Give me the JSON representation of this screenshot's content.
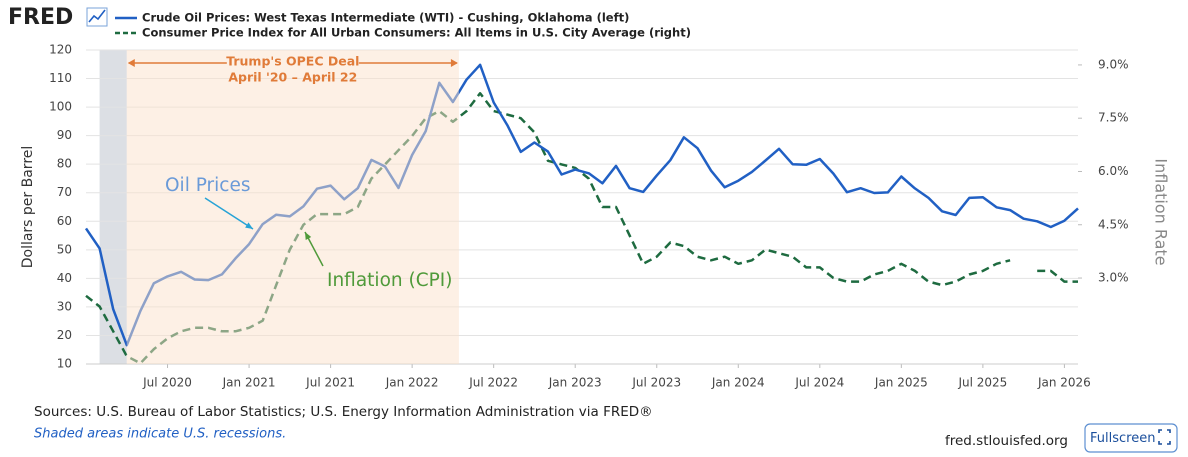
{
  "header": {
    "logo": "FRED"
  },
  "chart_data": {
    "type": "line",
    "x": [
      "2020-01",
      "2020-02",
      "2020-03",
      "2020-04",
      "2020-05",
      "2020-06",
      "2020-07",
      "2020-08",
      "2020-09",
      "2020-10",
      "2020-11",
      "2020-12",
      "2021-01",
      "2021-02",
      "2021-03",
      "2021-04",
      "2021-05",
      "2021-06",
      "2021-07",
      "2021-08",
      "2021-09",
      "2021-10",
      "2021-11",
      "2021-12",
      "2022-01",
      "2022-02",
      "2022-03",
      "2022-04",
      "2022-05",
      "2022-06",
      "2022-07",
      "2022-08",
      "2022-09",
      "2022-10",
      "2022-11",
      "2022-12",
      "2023-01",
      "2023-02",
      "2023-03",
      "2023-04",
      "2023-05",
      "2023-06",
      "2023-07",
      "2023-08",
      "2023-09",
      "2023-10",
      "2023-11",
      "2023-12",
      "2024-01",
      "2024-02",
      "2024-03",
      "2024-04",
      "2024-05",
      "2024-06",
      "2024-07",
      "2024-08",
      "2024-09",
      "2024-10",
      "2024-11",
      "2024-12",
      "2025-01",
      "2025-02",
      "2025-03",
      "2025-04",
      "2025-05",
      "2025-06",
      "2025-07",
      "2025-08",
      "2025-09",
      "2025-10",
      "2025-11",
      "2025-12",
      "2026-01",
      "2026-02"
    ],
    "series": [
      {
        "name": "Crude Oil Prices: West Texas Intermediate (WTI) - Cushing, Oklahoma (left)",
        "color": "#2160c4",
        "dashed": false,
        "values": [
          57.5,
          50.5,
          29.2,
          16.6,
          28.6,
          38.3,
          40.7,
          42.3,
          39.6,
          39.4,
          41.4,
          47.0,
          52.0,
          59.0,
          62.3,
          61.7,
          65.2,
          71.4,
          72.5,
          67.7,
          71.6,
          81.5,
          79.2,
          71.7,
          83.2,
          91.6,
          108.5,
          101.8,
          109.6,
          114.8,
          101.6,
          93.7,
          84.3,
          87.6,
          84.4,
          76.4,
          78.1,
          76.8,
          73.3,
          79.4,
          71.6,
          70.3,
          76.0,
          81.4,
          89.4,
          85.6,
          77.7,
          71.9,
          74.2,
          77.3,
          81.3,
          85.4,
          80.0,
          79.8,
          81.8,
          76.7,
          70.2,
          71.6,
          69.9,
          70.1,
          75.7,
          71.5,
          68.2,
          63.5,
          62.2,
          68.2,
          68.4,
          64.9,
          63.9,
          60.9,
          60.0,
          58.0,
          60.2,
          64.5
        ]
      },
      {
        "name": "Consumer Price Index for All Urban Consumers: All Items in U.S. City Average (right)",
        "color": "#1e6b40",
        "dashed": true,
        "axis": "y2",
        "values": [
          2.5,
          2.2,
          1.5,
          0.8,
          0.6,
          1.0,
          1.3,
          1.5,
          1.6,
          1.6,
          1.5,
          1.5,
          1.6,
          1.8,
          2.8,
          3.8,
          4.5,
          4.8,
          4.8,
          4.8,
          5.0,
          5.8,
          6.2,
          6.6,
          7.0,
          7.5,
          7.7,
          7.4,
          7.7,
          8.2,
          7.7,
          7.6,
          7.5,
          7.1,
          6.3,
          6.2,
          6.1,
          5.8,
          5.0,
          5.0,
          4.2,
          3.4,
          3.6,
          4.0,
          3.9,
          3.6,
          3.5,
          3.6,
          3.4,
          3.5,
          3.8,
          3.7,
          3.6,
          3.3,
          3.3,
          3.0,
          2.9,
          2.9,
          3.1,
          3.2,
          3.4,
          3.2,
          2.9,
          2.8,
          2.9,
          3.1,
          3.2,
          3.4,
          3.5,
          null,
          3.2,
          3.2,
          2.9,
          2.9
        ]
      }
    ],
    "xlim": [
      "2020-01",
      "2026-02"
    ],
    "xticks": [
      {
        "value": "2020-07",
        "label": "Jul 2020"
      },
      {
        "value": "2021-01",
        "label": "Jan 2021"
      },
      {
        "value": "2021-07",
        "label": "Jul 2021"
      },
      {
        "value": "2022-01",
        "label": "Jan 2022"
      },
      {
        "value": "2022-07",
        "label": "Jul 2022"
      },
      {
        "value": "2023-01",
        "label": "Jan 2023"
      },
      {
        "value": "2023-07",
        "label": "Jul 2023"
      },
      {
        "value": "2024-01",
        "label": "Jan 2024"
      },
      {
        "value": "2024-07",
        "label": "Jul 2024"
      },
      {
        "value": "2025-01",
        "label": "Jan 2025"
      },
      {
        "value": "2025-07",
        "label": "Jul 2025"
      },
      {
        "value": "2026-01",
        "label": "Jan 2026"
      }
    ],
    "ylim": [
      10,
      120
    ],
    "yticks": [
      10,
      20,
      30,
      40,
      50,
      60,
      70,
      80,
      90,
      100,
      110,
      120
    ],
    "y2lim": [
      0.58,
      9.42
    ],
    "y2ticks": [
      {
        "value": 3,
        "label": "3.0%"
      },
      {
        "value": 4.5,
        "label": "4.5%"
      },
      {
        "value": 6,
        "label": "6.0%"
      },
      {
        "value": 7.5,
        "label": "7.5%"
      },
      {
        "value": 9,
        "label": "9.0%"
      }
    ],
    "ylabel": "Dollars per Barrel",
    "y2label": "Inflation Rate",
    "grid": true,
    "recessions": [
      {
        "start": "2020-02",
        "end": "2020-04"
      }
    ],
    "highlight": {
      "start": "2020-04",
      "end": "2022-04",
      "title": "Trump's OPEC Deal",
      "subtitle": "April '20 – April 22"
    },
    "annotations": [
      {
        "text": "Oil Prices",
        "series": 0
      },
      {
        "text": "Inflation (CPI)",
        "series": 1
      }
    ]
  },
  "footer": {
    "sources": "Sources: U.S. Bureau of Labor Statistics; U.S. Energy Information Administration via FRED®",
    "note": "Shaded areas indicate U.S. recessions.",
    "site": "fred.stlouisfed.org",
    "button": "Fullscreen"
  }
}
